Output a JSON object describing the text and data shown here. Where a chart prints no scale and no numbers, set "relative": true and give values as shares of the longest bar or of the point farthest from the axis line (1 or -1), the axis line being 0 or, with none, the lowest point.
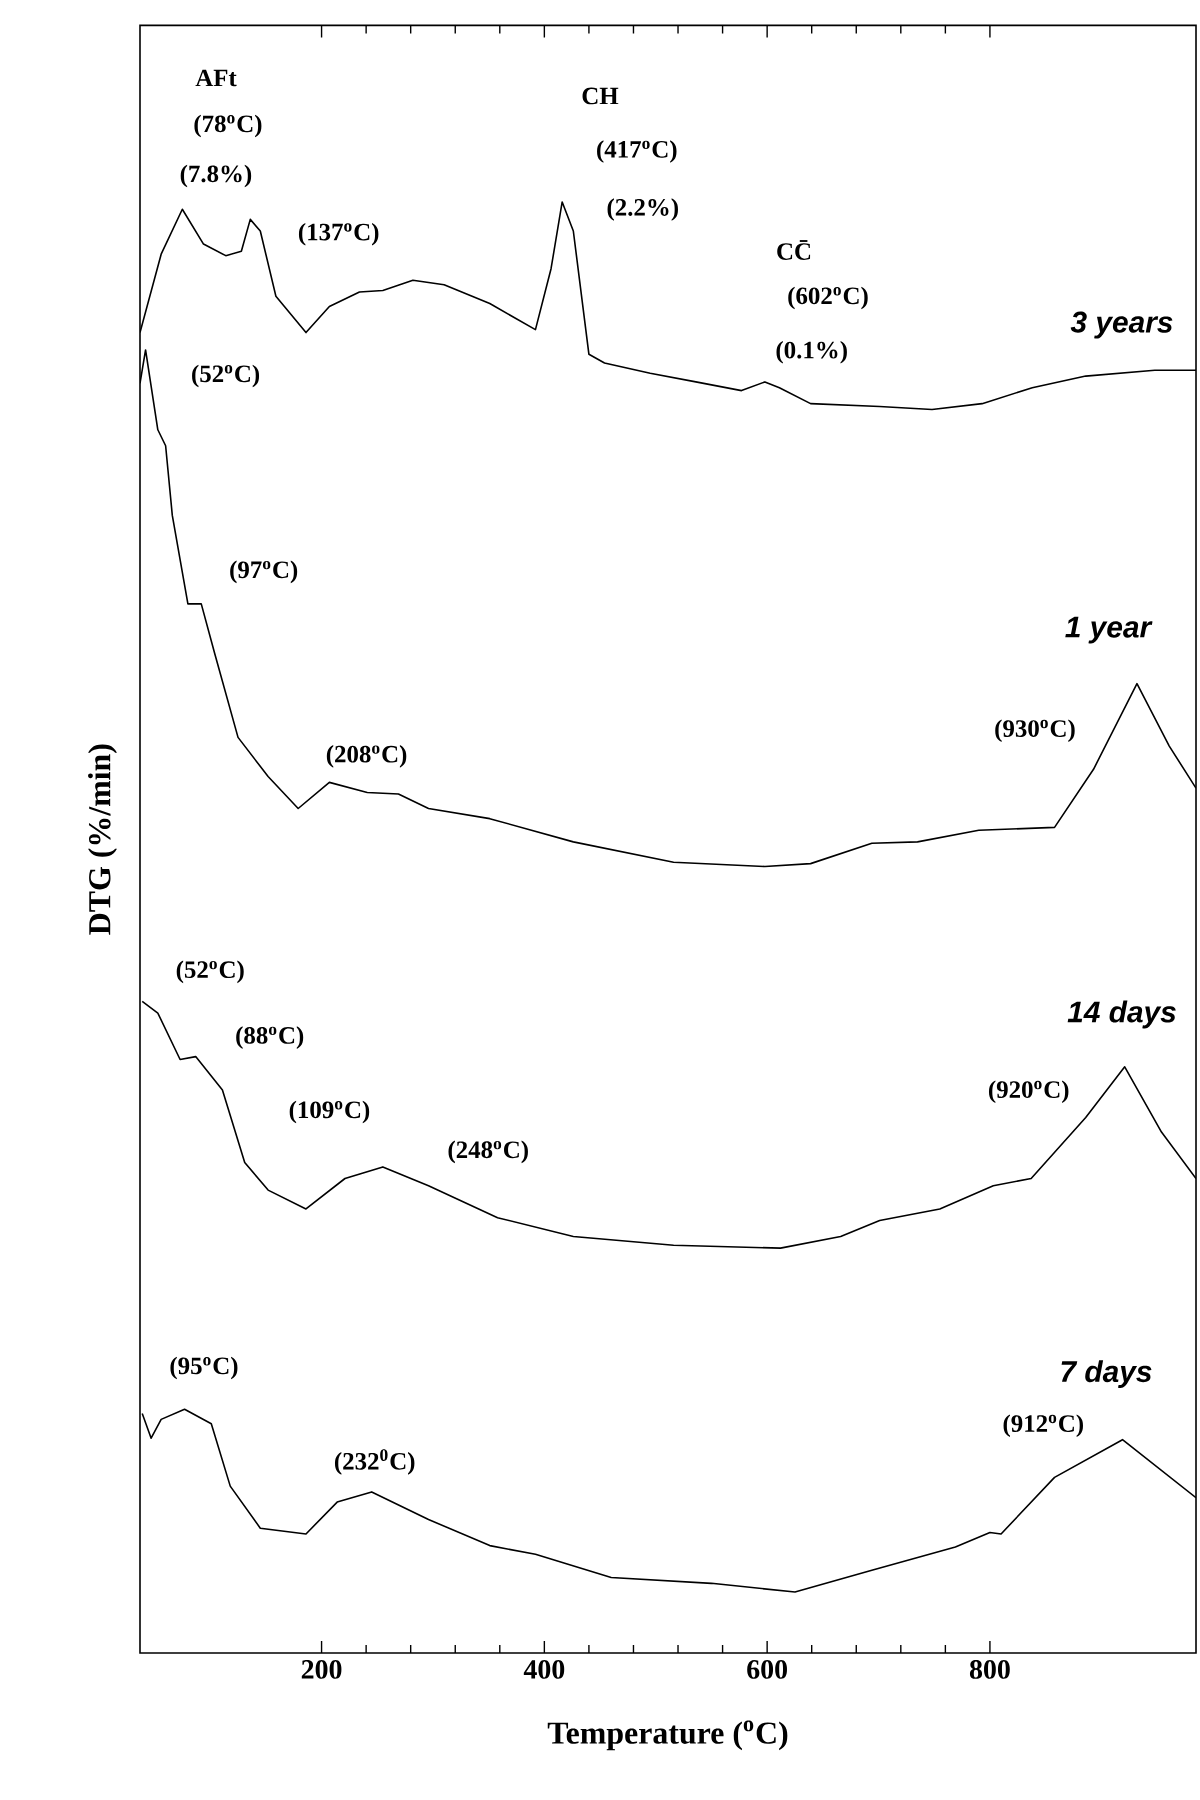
{
  "chart_data": {
    "type": "line",
    "relative": true,
    "xlabel": "Temperature ($^{o}$C)",
    "ylabel": "DTG (%/min)",
    "xlim": [
      37,
      985
    ],
    "xticks": [
      200,
      400,
      600,
      800
    ],
    "legend": false,
    "marker": "none",
    "line_style": "solid",
    "series": [
      {
        "name": "3 years",
        "color": "#000000",
        "x": [
          37,
          56,
          75,
          94,
          114,
          128,
          136,
          145,
          159,
          186,
          207,
          234,
          255,
          282,
          310,
          351,
          392,
          406,
          416,
          426,
          440,
          454,
          495,
          536,
          577,
          598,
          611,
          639,
          701,
          748,
          793,
          838,
          886,
          948,
          985
        ],
        "values": [
          0.91,
          0.964,
          0.995,
          0.971,
          0.963,
          0.966,
          0.988,
          0.98,
          0.935,
          0.91,
          0.928,
          0.938,
          0.939,
          0.946,
          0.943,
          0.93,
          0.912,
          0.954,
          1.0,
          0.98,
          0.895,
          0.889,
          0.882,
          0.876,
          0.87,
          0.876,
          0.872,
          0.861,
          0.859,
          0.857,
          0.861,
          0.872,
          0.88,
          0.884,
          0.884
        ]
      },
      {
        "name": "1 year",
        "color": "#000000",
        "x": [
          37,
          42,
          53,
          60,
          66,
          80,
          92,
          104,
          125,
          152,
          179,
          207,
          241,
          269,
          296,
          351,
          426,
          516,
          598,
          639,
          694,
          735,
          790,
          858,
          893,
          932,
          961,
          985
        ],
        "values": [
          0.875,
          0.898,
          0.843,
          0.832,
          0.784,
          0.723,
          0.723,
          0.689,
          0.631,
          0.604,
          0.582,
          0.6,
          0.593,
          0.592,
          0.582,
          0.575,
          0.559,
          0.545,
          0.542,
          0.544,
          0.558,
          0.559,
          0.567,
          0.569,
          0.609,
          0.668,
          0.625,
          0.596
        ]
      },
      {
        "name": "14 days",
        "color": "#000000",
        "x": [
          39,
          53,
          73,
          87,
          111,
          131,
          152,
          186,
          221,
          255,
          296,
          358,
          426,
          516,
          612,
          666,
          701,
          755,
          803,
          837,
          886,
          921,
          954,
          985
        ],
        "values": [
          0.449,
          0.441,
          0.409,
          0.411,
          0.388,
          0.338,
          0.319,
          0.306,
          0.327,
          0.335,
          0.322,
          0.3,
          0.287,
          0.281,
          0.279,
          0.287,
          0.298,
          0.306,
          0.322,
          0.327,
          0.369,
          0.404,
          0.359,
          0.327
        ]
      },
      {
        "name": "7 days",
        "color": "#000000",
        "x": [
          39,
          47,
          56,
          77,
          101,
          118,
          145,
          186,
          214,
          245,
          296,
          351,
          392,
          460,
          550,
          625,
          694,
          769,
          800,
          810,
          858,
          919,
          985
        ],
        "values": [
          0.165,
          0.148,
          0.161,
          0.168,
          0.158,
          0.115,
          0.086,
          0.082,
          0.104,
          0.111,
          0.092,
          0.074,
          0.068,
          0.052,
          0.048,
          0.042,
          0.057,
          0.073,
          0.083,
          0.082,
          0.121,
          0.147,
          0.107
        ]
      }
    ],
    "annotations": [
      "AFt",
      {
        "text": "(78$^{o}$C)",
        "x": 75,
        "y": 0.995
      },
      {
        "text": "(7.8%)",
        "x": 75,
        "y": 0.995
      },
      {
        "text": "(137$^{o}$C)",
        "x": 136,
        "y": 0.988
      },
      "CH",
      {
        "text": "(417$^{o}$C)",
        "x": 416,
        "y": 1.0
      },
      {
        "text": "(2.2%)",
        "x": 416,
        "y": 1.0
      },
      "CC̄",
      "(602$^{o}$C)",
      {
        "text": "(0.1%)",
        "x": 598,
        "y": 0.876
      },
      {
        "text": "(52$^{o}$C)",
        "x": 42,
        "y": 0.898
      },
      {
        "text": "(97$^{o}$C)",
        "x": 92,
        "y": 0.723
      },
      {
        "text": "(208$^{o}$C)",
        "x": 207,
        "y": 0.6
      },
      {
        "text": "(930$^{o}$C)",
        "x": 932,
        "y": 0.668
      },
      {
        "text": "(52$^{o}$C)",
        "x": 39,
        "y": 0.449
      },
      {
        "text": "(88$^{o}$C)",
        "x": 87,
        "y": 0.411
      },
      {
        "text": "(109$^{o}$C)",
        "x": 111,
        "y": 0.388
      },
      {
        "text": "(248$^{o}$C)",
        "x": 255,
        "y": 0.335
      },
      {
        "text": "(920$^{o}$C)",
        "x": 921,
        "y": 0.404
      },
      {
        "text": "(95$^{o}$C)",
        "x": 77,
        "y": 0.168
      },
      {
        "text": "(232$^{0}$C)",
        "x": 245,
        "y": 0.111
      },
      {
        "text": "(912$^{o}$C)",
        "x": 919,
        "y": 0.147
      }
    ]
  }
}
